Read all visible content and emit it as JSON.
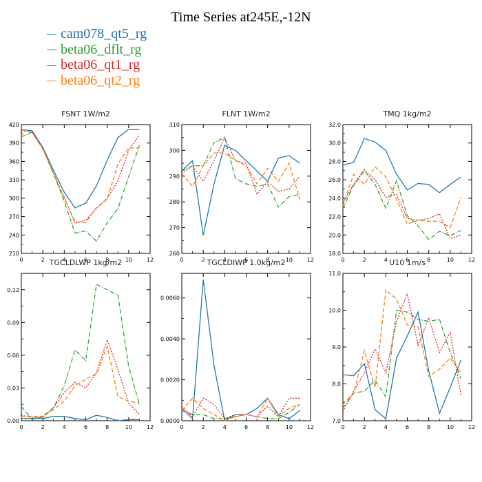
{
  "title": "Time Series at245E,-12N",
  "series_colors": {
    "cam078_qt5_rg": "#1f77b4",
    "beta06_dflt_rg": "#2ca02c",
    "beta06_qt1_rg": "#d62728",
    "beta06_qt2_rg": "#ff7f0e"
  },
  "legend": [
    {
      "name": "cam078_qt5_rg",
      "color": "#1f77b4",
      "dash": ""
    },
    {
      "name": "beta06_dflt_rg",
      "color": "#2ca02c",
      "dash": "6,2,1,2"
    },
    {
      "name": "beta06_qt1_rg",
      "color": "#d62728",
      "dash": "2,2"
    },
    {
      "name": "beta06_qt2_rg",
      "color": "#ff7f0e",
      "dash": "6,3"
    }
  ],
  "chart_data": [
    {
      "type": "line",
      "title": "FSNT   1W/m2",
      "x": [
        0,
        1,
        2,
        3,
        4,
        5,
        6,
        7,
        8,
        9,
        10,
        11
      ],
      "xlim": [
        0,
        12
      ],
      "xticks": [
        0,
        2,
        4,
        6,
        8,
        10,
        12
      ],
      "ylim": [
        210,
        420
      ],
      "yticks": [
        210,
        240,
        270,
        300,
        330,
        360,
        390,
        420
      ],
      "ytick_labels": [
        "210",
        "240",
        "270",
        "300",
        "330",
        "360",
        "390",
        "420"
      ],
      "series": [
        {
          "name": "cam078_qt5_rg",
          "values": [
            412,
            410,
            383,
            345,
            310,
            284,
            292,
            320,
            362,
            399,
            412,
            412
          ]
        },
        {
          "name": "beta06_dflt_rg",
          "values": [
            400,
            408,
            380,
            340,
            295,
            243,
            247,
            230,
            260,
            283,
            335,
            386
          ]
        },
        {
          "name": "beta06_qt1_rg",
          "values": [
            410,
            408,
            382,
            340,
            302,
            259,
            264,
            283,
            300,
            328,
            378,
            403
          ]
        },
        {
          "name": "beta06_qt2_rg",
          "values": [
            412,
            407,
            381,
            340,
            300,
            262,
            260,
            285,
            298,
            356,
            382,
            382
          ]
        }
      ]
    },
    {
      "type": "line",
      "title": "FLNT   1W/m2",
      "x": [
        0,
        1,
        2,
        3,
        4,
        5,
        6,
        7,
        8,
        9,
        10,
        11
      ],
      "xlim": [
        0,
        12
      ],
      "xticks": [
        0,
        2,
        4,
        6,
        8,
        10,
        12
      ],
      "ylim": [
        260,
        310
      ],
      "yticks": [
        260,
        270,
        280,
        290,
        300,
        310
      ],
      "ytick_labels": [
        "260",
        "270",
        "280",
        "290",
        "300",
        "310"
      ],
      "series": [
        {
          "name": "cam078_qt5_rg",
          "values": [
            292,
            296,
            267,
            287,
            302,
            300,
            296,
            292,
            288,
            297,
            298,
            295
          ]
        },
        {
          "name": "beta06_dflt_rg",
          "values": [
            292,
            294,
            294,
            303,
            305,
            289,
            287,
            286,
            287,
            278,
            282,
            283
          ]
        },
        {
          "name": "beta06_qt1_rg",
          "values": [
            291,
            294,
            288,
            296,
            305,
            296,
            295,
            283,
            288,
            284,
            285,
            290
          ]
        },
        {
          "name": "beta06_qt2_rg",
          "values": [
            291,
            286,
            294,
            299,
            299,
            296,
            294,
            287,
            293,
            288,
            295,
            281
          ]
        }
      ]
    },
    {
      "type": "line",
      "title": "TMQ   1kg/m2",
      "x": [
        0,
        1,
        2,
        3,
        4,
        5,
        6,
        7,
        8,
        9,
        10,
        11
      ],
      "xlim": [
        0,
        12
      ],
      "xticks": [
        0,
        2,
        4,
        6,
        8,
        10,
        12
      ],
      "ylim": [
        18,
        32
      ],
      "yticks": [
        18,
        20,
        22,
        24,
        26,
        28,
        30,
        32
      ],
      "ytick_labels": [
        "18.0",
        "20.0",
        "22.0",
        "24.0",
        "26.0",
        "28.0",
        "30.0",
        "32.0"
      ],
      "series": [
        {
          "name": "cam078_qt5_rg",
          "values": [
            27.6,
            27.9,
            30.5,
            30.1,
            29.2,
            26.6,
            24.9,
            25.6,
            25.5,
            24.6,
            25.5,
            26.3
          ]
        },
        {
          "name": "beta06_dflt_rg",
          "values": [
            22.9,
            25.4,
            27.0,
            25.5,
            22.9,
            25.9,
            22.1,
            21.0,
            19.5,
            20.4,
            19.9,
            20.5
          ]
        },
        {
          "name": "beta06_qt1_rg",
          "values": [
            23.5,
            25.5,
            27.1,
            26.0,
            24.1,
            24.4,
            21.8,
            21.6,
            21.8,
            22.3,
            19.6,
            20.0
          ]
        },
        {
          "name": "beta06_qt2_rg",
          "values": [
            23.2,
            26.6,
            25.5,
            27.4,
            26.3,
            23.9,
            21.2,
            21.6,
            21.5,
            21.5,
            20.8,
            24.1
          ]
        }
      ]
    },
    {
      "type": "line",
      "title": "TGCLDLWP   1kg/m2",
      "x": [
        0,
        1,
        2,
        3,
        4,
        5,
        6,
        7,
        8,
        9,
        10,
        11
      ],
      "xlim": [
        0,
        12
      ],
      "xticks": [
        0,
        2,
        4,
        6,
        8,
        10,
        12
      ],
      "ylim": [
        0,
        0.135
      ],
      "yticks": [
        0,
        0.03,
        0.06,
        0.09,
        0.12
      ],
      "ytick_labels": [
        "0.00",
        "0.03",
        "0.06",
        "0.09",
        "0.12"
      ],
      "series": [
        {
          "name": "cam078_qt5_rg",
          "values": [
            0.002,
            0.002,
            0.002,
            0.004,
            0.004,
            0.002,
            0.001,
            0.005,
            0.003,
            0.0,
            0.001,
            0.001
          ]
        },
        {
          "name": "beta06_dflt_rg",
          "values": [
            0.013,
            0.001,
            0.004,
            0.012,
            0.032,
            0.065,
            0.055,
            0.125,
            0.12,
            0.115,
            0.05,
            0.015
          ]
        },
        {
          "name": "beta06_qt1_rg",
          "values": [
            0.005,
            0.003,
            0.003,
            0.012,
            0.026,
            0.035,
            0.03,
            0.044,
            0.074,
            0.047,
            0.016,
            0.006
          ]
        },
        {
          "name": "beta06_qt2_rg",
          "values": [
            0.004,
            0.004,
            0.004,
            0.01,
            0.018,
            0.032,
            0.038,
            0.043,
            0.068,
            0.022,
            0.018,
            0.016
          ]
        }
      ]
    },
    {
      "type": "line",
      "title": "TGCLDIWP   1.0kg/m2",
      "x": [
        0,
        1,
        2,
        3,
        4,
        5,
        6,
        7,
        8,
        9,
        10,
        11
      ],
      "xlim": [
        0,
        12
      ],
      "xticks": [
        0,
        2,
        4,
        6,
        8,
        10,
        12
      ],
      "ylim": [
        0,
        0.0072
      ],
      "yticks": [
        0,
        0.002,
        0.004,
        0.006
      ],
      "ytick_labels": [
        "0.0000",
        "0.0020",
        "0.0040",
        "0.0060"
      ],
      "series": [
        {
          "name": "cam078_qt5_rg",
          "values": [
            0.0006,
            0.0001,
            0.0069,
            0.0027,
            0.0,
            0.0003,
            0.0003,
            0.0006,
            0.0011,
            0.0003,
            0.0001,
            0.0005
          ]
        },
        {
          "name": "beta06_dflt_rg",
          "values": [
            0.0005,
            0.0003,
            0.0003,
            0.0001,
            0.0001,
            0.0002,
            0.0003,
            0.0002,
            0.0001,
            0.0001,
            0.0004,
            0.0008
          ]
        },
        {
          "name": "beta06_qt1_rg",
          "values": [
            0.0007,
            0.0002,
            0.0011,
            0.0008,
            0.0001,
            0.0003,
            0.0003,
            0.0002,
            0.0007,
            0.0002,
            0.0011,
            0.0011
          ]
        },
        {
          "name": "beta06_qt2_rg",
          "values": [
            0.0005,
            0.0011,
            0.0006,
            0.0003,
            0.0,
            0.0002,
            0.0003,
            0.0002,
            0.0011,
            0.0002,
            0.0006,
            0.0008
          ]
        }
      ]
    },
    {
      "type": "line",
      "title": "U10   1m/s",
      "x": [
        0,
        1,
        2,
        3,
        4,
        5,
        6,
        7,
        8,
        9,
        10,
        11
      ],
      "xlim": [
        0,
        12
      ],
      "xticks": [
        0,
        2,
        4,
        6,
        8,
        10,
        12
      ],
      "ylim": [
        7,
        11
      ],
      "yticks": [
        7,
        8,
        9,
        10,
        11
      ],
      "ytick_labels": [
        "7.0",
        "8.0",
        "9.0",
        "10.0",
        "11.0"
      ],
      "series": [
        {
          "name": "cam078_qt5_rg",
          "values": [
            8.25,
            8.22,
            8.55,
            7.3,
            7.05,
            8.7,
            9.3,
            9.95,
            8.35,
            7.2,
            7.9,
            8.65
          ]
        },
        {
          "name": "beta06_dflt_rg",
          "values": [
            7.35,
            7.75,
            7.8,
            8.1,
            7.65,
            10.0,
            9.95,
            9.75,
            9.7,
            9.75,
            8.85,
            8.15
          ]
        },
        {
          "name": "beta06_qt1_rg",
          "values": [
            7.25,
            7.8,
            8.3,
            8.95,
            8.3,
            9.7,
            10.45,
            9.05,
            9.8,
            8.85,
            9.4,
            7.7
          ]
        },
        {
          "name": "beta06_qt2_rg",
          "values": [
            7.45,
            7.75,
            8.9,
            7.9,
            10.55,
            10.3,
            9.6,
            9.55,
            8.2,
            8.4,
            8.7,
            8.3
          ]
        }
      ]
    }
  ]
}
